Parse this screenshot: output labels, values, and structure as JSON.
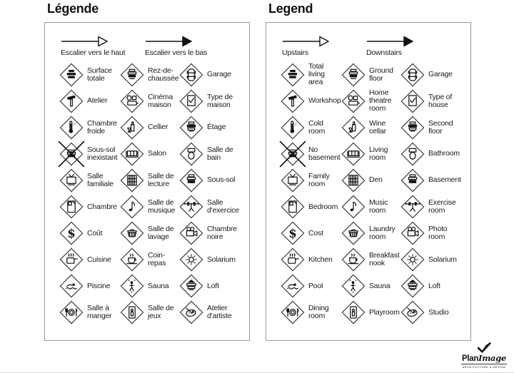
{
  "panels": [
    {
      "title": "Légende",
      "arrows": [
        {
          "icon": "upstairs-arrow-icon",
          "label": "Escalier vers le haut"
        },
        {
          "icon": "downstairs-arrow-icon",
          "label": "Escalier vers le bas"
        }
      ],
      "items": [
        {
          "icon": "total-area-stack-icon",
          "label": "Surface\ntotale"
        },
        {
          "icon": "ground-floor-stack-icon",
          "label": "Rez-de-\nchaussée"
        },
        {
          "icon": "car-icon",
          "label": "Garage"
        },
        {
          "icon": "hammer-icon",
          "label": "Atelier"
        },
        {
          "icon": "projector-icon",
          "label": "Cinéma\nmaison"
        },
        {
          "icon": "checklist-icon",
          "label": "Type de\nmaison"
        },
        {
          "icon": "thermometer-icon",
          "label": "Chambre\nfroide"
        },
        {
          "icon": "wine-bottle-icon",
          "label": "Cellier"
        },
        {
          "icon": "second-floor-stack-icon",
          "label": "Étage"
        },
        {
          "icon": "no-basement-icon",
          "label": "Sous-sol\ninexistant"
        },
        {
          "icon": "sofa-icon",
          "label": "Salon"
        },
        {
          "icon": "toilet-icon",
          "label": "Salle de\nbain"
        },
        {
          "icon": "tv-icon",
          "label": "Salle\nfamiliale"
        },
        {
          "icon": "bookshelf-icon",
          "label": "Salle de\nlecture"
        },
        {
          "icon": "basement-stack-icon",
          "label": "Sous-sol"
        },
        {
          "icon": "bed-icon",
          "label": "Chambre"
        },
        {
          "icon": "music-note-icon",
          "label": "Salle de\nmusique"
        },
        {
          "icon": "barbell-icon",
          "label": "Salle\nd'exercice"
        },
        {
          "icon": "dollar-icon",
          "label": "Coût"
        },
        {
          "icon": "laundry-basket-icon",
          "label": "Salle de\nlavage"
        },
        {
          "icon": "camera-icon",
          "label": "Chambre\nnoire"
        },
        {
          "icon": "cooking-pot-icon",
          "label": "Cuisine"
        },
        {
          "icon": "coffee-cup-icon",
          "label": "Coin-\nrepas"
        },
        {
          "icon": "sun-icon",
          "label": "Solarium"
        },
        {
          "icon": "swimmer-icon",
          "label": "Piscine"
        },
        {
          "icon": "sauna-person-icon",
          "label": "Sauna"
        },
        {
          "icon": "loft-stack-icon",
          "label": "Loft"
        },
        {
          "icon": "plate-cutlery-icon",
          "label": "Salle à\nmanger"
        },
        {
          "icon": "toy-icon",
          "label": "Salle de\njeux"
        },
        {
          "icon": "palette-icon",
          "label": "Atelier\nd'artiste"
        }
      ]
    },
    {
      "title": "Legend",
      "arrows": [
        {
          "icon": "upstairs-arrow-icon",
          "label": "Upstairs"
        },
        {
          "icon": "downstairs-arrow-icon",
          "label": "Downstairs"
        }
      ],
      "items": [
        {
          "icon": "total-area-stack-icon",
          "label": "Total\nliving\narea"
        },
        {
          "icon": "ground-floor-stack-icon",
          "label": "Ground\nfloor"
        },
        {
          "icon": "car-icon",
          "label": "Garage"
        },
        {
          "icon": "hammer-icon",
          "label": "Workshop"
        },
        {
          "icon": "projector-icon",
          "label": "Home\ntheatre\nroom"
        },
        {
          "icon": "checklist-icon",
          "label": "Type of\nhouse"
        },
        {
          "icon": "thermometer-icon",
          "label": "Cold\nroom"
        },
        {
          "icon": "wine-bottle-icon",
          "label": "Wine\ncellar"
        },
        {
          "icon": "second-floor-stack-icon",
          "label": "Second\nfloor"
        },
        {
          "icon": "no-basement-icon",
          "label": "No\nbasement"
        },
        {
          "icon": "sofa-icon",
          "label": "Living\nroom"
        },
        {
          "icon": "toilet-icon",
          "label": "Bathroom"
        },
        {
          "icon": "tv-icon",
          "label": "Family\nroom"
        },
        {
          "icon": "bookshelf-icon",
          "label": "Den"
        },
        {
          "icon": "basement-stack-icon",
          "label": "Basement"
        },
        {
          "icon": "bed-icon",
          "label": "Bedroom"
        },
        {
          "icon": "music-note-icon",
          "label": "Music\nroom"
        },
        {
          "icon": "barbell-icon",
          "label": "Exercise\nroom"
        },
        {
          "icon": "dollar-icon",
          "label": "Cost"
        },
        {
          "icon": "laundry-basket-icon",
          "label": "Laundry\nroom"
        },
        {
          "icon": "camera-icon",
          "label": "Photo\nroom"
        },
        {
          "icon": "cooking-pot-icon",
          "label": "Kitchen"
        },
        {
          "icon": "coffee-cup-icon",
          "label": "Breakfast\nnook"
        },
        {
          "icon": "sun-icon",
          "label": "Solarium"
        },
        {
          "icon": "swimmer-icon",
          "label": "Pool"
        },
        {
          "icon": "sauna-person-icon",
          "label": "Sauna"
        },
        {
          "icon": "loft-stack-icon",
          "label": "Loft"
        },
        {
          "icon": "plate-cutlery-icon",
          "label": "Dining\nroom"
        },
        {
          "icon": "toy-icon",
          "label": "Playroom"
        },
        {
          "icon": "palette-icon",
          "label": "Studio"
        }
      ]
    }
  ],
  "logo": {
    "icon": "checkmark-logo-icon",
    "name_bold": "Plan",
    "name_italic": "Image",
    "tagline": "ARCHITECTURE & DESIGN"
  }
}
